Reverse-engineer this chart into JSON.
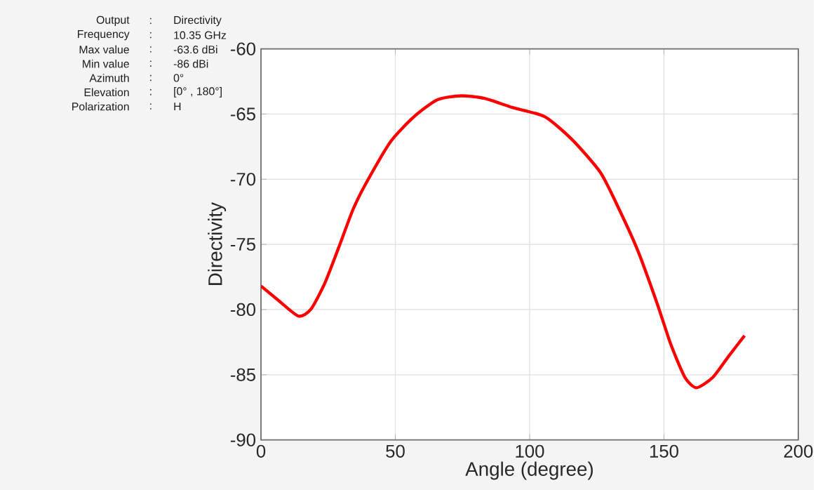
{
  "chart_data": {
    "type": "line",
    "xlabel": "Angle (degree)",
    "ylabel": "Directivity",
    "x": [
      0,
      6.5,
      13.9,
      18.5,
      23.7,
      29,
      34.3,
      39.4,
      48.3,
      57,
      65.7,
      74.5,
      83.2,
      93.6,
      105.6,
      116,
      126.4,
      133.3,
      140.3,
      147.4,
      152.6,
      157.8,
      162.1,
      168.2,
      174,
      180
    ],
    "series": [
      {
        "color": "#ff0000",
        "values": [
          -78.2,
          -79.3,
          -80.5,
          -80.0,
          -78.0,
          -75.2,
          -72.3,
          -70.2,
          -67.1,
          -65.2,
          -63.9,
          -63.6,
          -63.8,
          -64.5,
          -65.2,
          -67.0,
          -69.5,
          -72.3,
          -75.5,
          -79.5,
          -82.7,
          -85.2,
          -86.0,
          -85.2,
          -83.6,
          -82.0
        ]
      }
    ],
    "xlim": [
      0,
      200
    ],
    "xticks": [
      0,
      50,
      100,
      150,
      200
    ],
    "ylim": [
      -90,
      -60
    ],
    "yticks": [
      -90,
      -85,
      -80,
      -75,
      -70,
      -65,
      -60
    ],
    "grid": true,
    "line_style": "solid",
    "marker": "none",
    "annotations": [
      "Output",
      ":",
      "Directivity",
      "Frequency",
      ":",
      "10.35 GHz",
      "Max value",
      ":",
      "-63.6 dBi",
      "Min value",
      ":",
      "-86 dBi",
      "Azimuth",
      ":",
      "0°",
      "Elevation",
      ":",
      "[0° , 180°]",
      "Polarization",
      ":",
      "H"
    ]
  }
}
